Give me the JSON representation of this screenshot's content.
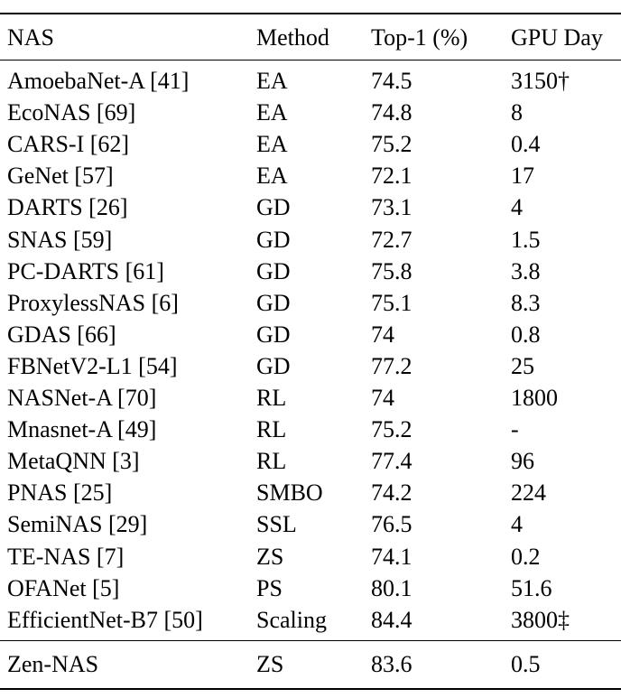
{
  "table": {
    "headers": {
      "nas": "NAS",
      "method": "Method",
      "top1": "Top-1 (%)",
      "gpu_day": "GPU Day"
    },
    "rows": [
      {
        "nas": "AmoebaNet-A [41]",
        "method": "EA",
        "top1": "74.5",
        "gpu_day": "3150†"
      },
      {
        "nas": "EcoNAS [69]",
        "method": "EA",
        "top1": "74.8",
        "gpu_day": "8"
      },
      {
        "nas": "CARS-I [62]",
        "method": "EA",
        "top1": "75.2",
        "gpu_day": "0.4"
      },
      {
        "nas": "GeNet [57]",
        "method": "EA",
        "top1": "72.1",
        "gpu_day": "17"
      },
      {
        "nas": "DARTS [26]",
        "method": "GD",
        "top1": "73.1",
        "gpu_day": "4"
      },
      {
        "nas": "SNAS [59]",
        "method": "GD",
        "top1": "72.7",
        "gpu_day": "1.5"
      },
      {
        "nas": "PC-DARTS [61]",
        "method": "GD",
        "top1": "75.8",
        "gpu_day": "3.8"
      },
      {
        "nas": "ProxylessNAS [6]",
        "method": "GD",
        "top1": "75.1",
        "gpu_day": "8.3"
      },
      {
        "nas": "GDAS [66]",
        "method": "GD",
        "top1": "74",
        "gpu_day": "0.8"
      },
      {
        "nas": "FBNetV2-L1 [54]",
        "method": "GD",
        "top1": "77.2",
        "gpu_day": "25"
      },
      {
        "nas": "NASNet-A [70]",
        "method": "RL",
        "top1": "74",
        "gpu_day": "1800"
      },
      {
        "nas": "Mnasnet-A [49]",
        "method": "RL",
        "top1": "75.2",
        "gpu_day": "-"
      },
      {
        "nas": "MetaQNN [3]",
        "method": "RL",
        "top1": "77.4",
        "gpu_day": "96"
      },
      {
        "nas": "PNAS [25]",
        "method": "SMBO",
        "top1": "74.2",
        "gpu_day": "224"
      },
      {
        "nas": "SemiNAS [29]",
        "method": "SSL",
        "top1": "76.5",
        "gpu_day": "4"
      },
      {
        "nas": "TE-NAS [7]",
        "method": "ZS",
        "top1": "74.1",
        "gpu_day": "0.2"
      },
      {
        "nas": "OFANet [5]",
        "method": "PS",
        "top1": "80.1",
        "gpu_day": "51.6"
      },
      {
        "nas": "EfficientNet-B7 [50]",
        "method": "Scaling",
        "top1": "84.4",
        "gpu_day": "3800‡"
      }
    ],
    "final_row": {
      "nas": "Zen-NAS",
      "method": "ZS",
      "top1": "83.6",
      "gpu_day": "0.5"
    }
  }
}
